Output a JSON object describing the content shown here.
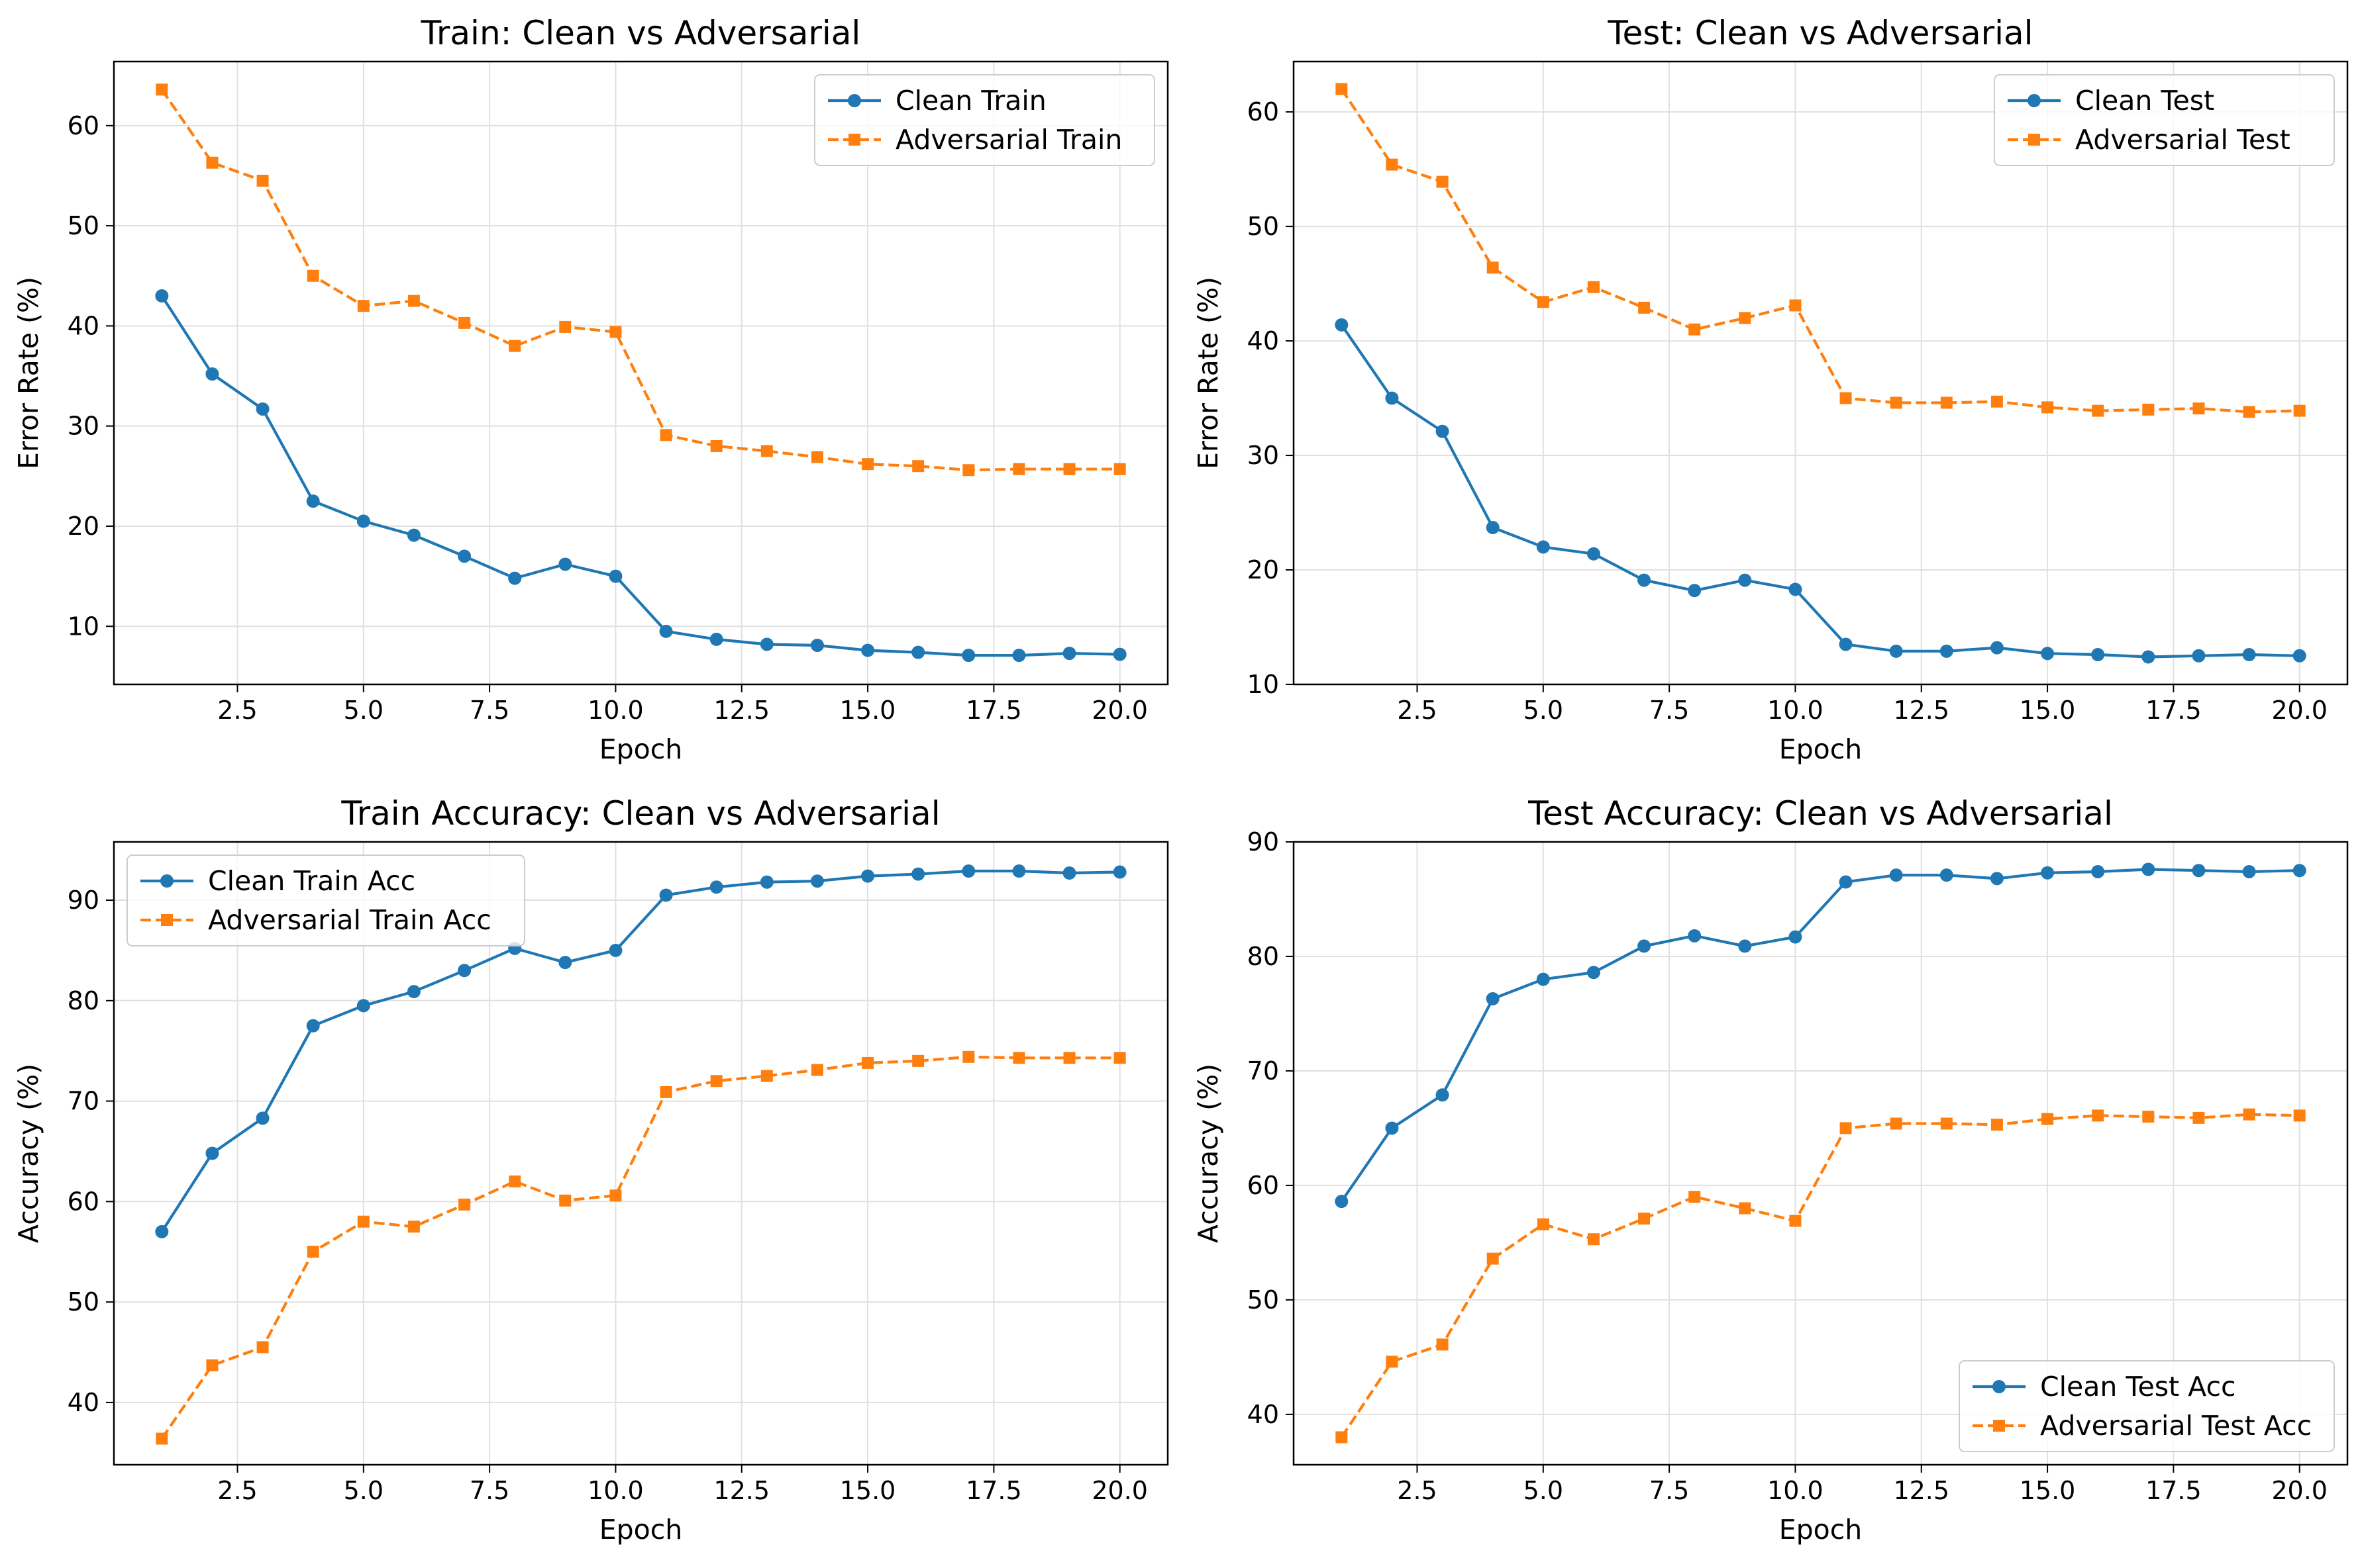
{
  "colors": {
    "clean": "#1f77b4",
    "adversarial": "#ff7f0e",
    "grid": "#e0e0e0",
    "frame": "#000000",
    "legend_border": "#cccccc"
  },
  "chart_data": [
    {
      "type": "line",
      "title": "Train: Clean vs Adversarial",
      "xlabel": "Epoch",
      "ylabel": "Error Rate (%)",
      "xlim": [
        0.05,
        20.95
      ],
      "ylim": [
        4.2,
        66.4
      ],
      "xticks": [
        2.5,
        5.0,
        7.5,
        10.0,
        12.5,
        15.0,
        17.5,
        20.0
      ],
      "xtick_labels": [
        "2.5",
        "5.0",
        "7.5",
        "10.0",
        "12.5",
        "15.0",
        "17.5",
        "20.0"
      ],
      "yticks": [
        10,
        20,
        30,
        40,
        50,
        60
      ],
      "ytick_labels": [
        "10",
        "20",
        "30",
        "40",
        "50",
        "60"
      ],
      "grid": true,
      "legend_position": "upper right",
      "x": [
        1,
        2,
        3,
        4,
        5,
        6,
        7,
        8,
        9,
        10,
        11,
        12,
        13,
        14,
        15,
        16,
        17,
        18,
        19,
        20
      ],
      "series": [
        {
          "name": "Clean Train",
          "style": "solid-circle",
          "values": [
            43.0,
            35.2,
            31.7,
            22.5,
            20.5,
            19.1,
            17.0,
            14.8,
            16.2,
            15.0,
            9.5,
            8.7,
            8.2,
            8.1,
            7.6,
            7.4,
            7.1,
            7.1,
            7.3,
            7.2
          ]
        },
        {
          "name": "Adversarial Train",
          "style": "dashed-square",
          "values": [
            63.6,
            56.3,
            54.5,
            45.0,
            42.0,
            42.5,
            40.3,
            38.0,
            39.9,
            39.4,
            29.1,
            28.0,
            27.5,
            26.9,
            26.2,
            26.0,
            25.6,
            25.7,
            25.7,
            25.7
          ]
        }
      ]
    },
    {
      "type": "line",
      "title": "Test: Clean vs Adversarial",
      "xlabel": "Epoch",
      "ylabel": "Error Rate (%)",
      "xlim": [
        0.05,
        20.95
      ],
      "ylim": [
        10.0,
        64.4
      ],
      "xticks": [
        2.5,
        5.0,
        7.5,
        10.0,
        12.5,
        15.0,
        17.5,
        20.0
      ],
      "xtick_labels": [
        "2.5",
        "5.0",
        "7.5",
        "10.0",
        "12.5",
        "15.0",
        "17.5",
        "20.0"
      ],
      "yticks": [
        10,
        20,
        30,
        40,
        50,
        60
      ],
      "ytick_labels": [
        "10",
        "20",
        "30",
        "40",
        "50",
        "60"
      ],
      "grid": true,
      "legend_position": "upper right",
      "x": [
        1,
        2,
        3,
        4,
        5,
        6,
        7,
        8,
        9,
        10,
        11,
        12,
        13,
        14,
        15,
        16,
        17,
        18,
        19,
        20
      ],
      "series": [
        {
          "name": "Clean Test",
          "style": "solid-circle",
          "values": [
            41.4,
            35.0,
            32.1,
            23.7,
            22.0,
            21.4,
            19.1,
            18.2,
            19.1,
            18.3,
            13.5,
            12.9,
            12.9,
            13.2,
            12.7,
            12.6,
            12.4,
            12.5,
            12.6,
            12.5
          ]
        },
        {
          "name": "Adversarial Test",
          "style": "dashed-square",
          "values": [
            62.0,
            55.4,
            53.9,
            46.4,
            43.4,
            44.7,
            42.9,
            41.0,
            42.0,
            43.1,
            35.0,
            34.6,
            34.6,
            34.7,
            34.2,
            33.9,
            34.0,
            34.1,
            33.8,
            33.9
          ]
        }
      ]
    },
    {
      "type": "line",
      "title": "Train Accuracy: Clean vs Adversarial",
      "xlabel": "Epoch",
      "ylabel": "Accuracy (%)",
      "xlim": [
        0.05,
        20.95
      ],
      "ylim": [
        33.8,
        95.8
      ],
      "xticks": [
        2.5,
        5.0,
        7.5,
        10.0,
        12.5,
        15.0,
        17.5,
        20.0
      ],
      "xtick_labels": [
        "2.5",
        "5.0",
        "7.5",
        "10.0",
        "12.5",
        "15.0",
        "17.5",
        "20.0"
      ],
      "yticks": [
        40,
        50,
        60,
        70,
        80,
        90
      ],
      "ytick_labels": [
        "40",
        "50",
        "60",
        "70",
        "80",
        "90"
      ],
      "grid": true,
      "legend_position": "upper left",
      "x": [
        1,
        2,
        3,
        4,
        5,
        6,
        7,
        8,
        9,
        10,
        11,
        12,
        13,
        14,
        15,
        16,
        17,
        18,
        19,
        20
      ],
      "series": [
        {
          "name": "Clean Train Acc",
          "style": "solid-circle",
          "values": [
            57.0,
            64.8,
            68.3,
            77.5,
            79.5,
            80.9,
            83.0,
            85.2,
            83.8,
            85.0,
            90.5,
            91.3,
            91.8,
            91.9,
            92.4,
            92.6,
            92.9,
            92.9,
            92.7,
            92.8
          ]
        },
        {
          "name": "Adversarial Train Acc",
          "style": "dashed-square",
          "values": [
            36.4,
            43.7,
            45.5,
            55.0,
            58.0,
            57.5,
            59.7,
            62.0,
            60.1,
            60.6,
            70.9,
            72.0,
            72.5,
            73.1,
            73.8,
            74.0,
            74.4,
            74.3,
            74.3,
            74.3
          ]
        }
      ]
    },
    {
      "type": "line",
      "title": "Test Accuracy: Clean vs Adversarial",
      "xlabel": "Epoch",
      "ylabel": "Accuracy (%)",
      "xlim": [
        0.05,
        20.95
      ],
      "ylim": [
        35.6,
        90.0
      ],
      "xticks": [
        2.5,
        5.0,
        7.5,
        10.0,
        12.5,
        15.0,
        17.5,
        20.0
      ],
      "xtick_labels": [
        "2.5",
        "5.0",
        "7.5",
        "10.0",
        "12.5",
        "15.0",
        "17.5",
        "20.0"
      ],
      "yticks": [
        40,
        50,
        60,
        70,
        80,
        90
      ],
      "ytick_labels": [
        "40",
        "50",
        "60",
        "70",
        "80",
        "90"
      ],
      "grid": true,
      "legend_position": "lower right",
      "x": [
        1,
        2,
        3,
        4,
        5,
        6,
        7,
        8,
        9,
        10,
        11,
        12,
        13,
        14,
        15,
        16,
        17,
        18,
        19,
        20
      ],
      "series": [
        {
          "name": "Clean Test Acc",
          "style": "solid-circle",
          "values": [
            58.6,
            65.0,
            67.9,
            76.3,
            78.0,
            78.6,
            80.9,
            81.8,
            80.9,
            81.7,
            86.5,
            87.1,
            87.1,
            86.8,
            87.3,
            87.4,
            87.6,
            87.5,
            87.4,
            87.5
          ]
        },
        {
          "name": "Adversarial Test Acc",
          "style": "dashed-square",
          "values": [
            38.0,
            44.6,
            46.1,
            53.6,
            56.6,
            55.3,
            57.1,
            59.0,
            58.0,
            56.9,
            65.0,
            65.4,
            65.4,
            65.3,
            65.8,
            66.1,
            66.0,
            65.9,
            66.2,
            66.1
          ]
        }
      ]
    }
  ]
}
